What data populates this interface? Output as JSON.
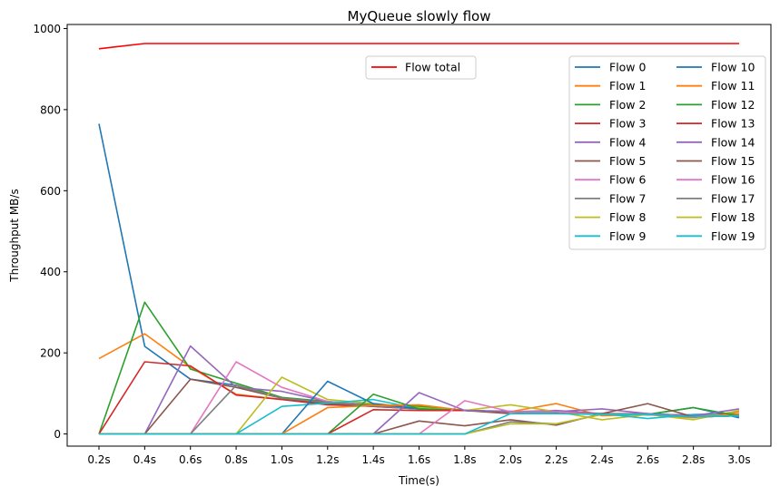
{
  "chart_data": {
    "type": "line",
    "title": "MyQueue slowly flow",
    "xlabel": "Time(s)",
    "ylabel": "Throughput MB/s",
    "categories": [
      "0.2s",
      "0.4s",
      "0.6s",
      "0.8s",
      "1.0s",
      "1.2s",
      "1.4s",
      "1.6s",
      "1.8s",
      "2.0s",
      "2.2s",
      "2.4s",
      "2.6s",
      "2.8s",
      "3.0s"
    ],
    "ylim": [
      -30,
      1010
    ],
    "yticks": [
      0,
      200,
      400,
      600,
      800,
      1000
    ],
    "grid": false,
    "legend_main_placement": "top-right",
    "legend_total_placement": "top-center",
    "total_series": {
      "name": "Flow total",
      "color": "#ff0000",
      "values": [
        950,
        963,
        963,
        963,
        963,
        963,
        963,
        963,
        963,
        963,
        963,
        963,
        963,
        963,
        963
      ]
    },
    "series": [
      {
        "name": "Flow 0",
        "color": "#1f77b4",
        "values": [
          765,
          216,
          135,
          120,
          88,
          78,
          72,
          65,
          58,
          56,
          52,
          50,
          47,
          47,
          44
        ]
      },
      {
        "name": "Flow 1",
        "color": "#ff7f0e",
        "values": [
          186,
          247,
          165,
          98,
          85,
          75,
          70,
          68,
          58,
          55,
          75,
          45,
          48,
          40,
          55
        ]
      },
      {
        "name": "Flow 2",
        "color": "#2ca02c",
        "values": [
          0,
          325,
          160,
          125,
          90,
          80,
          72,
          68,
          58,
          55,
          55,
          48,
          50,
          45,
          48
        ]
      },
      {
        "name": "Flow 3",
        "color": "#d62728",
        "values": [
          0,
          178,
          168,
          96,
          85,
          72,
          68,
          62,
          58,
          55,
          55,
          48,
          48,
          42,
          45
        ]
      },
      {
        "name": "Flow 4",
        "color": "#9467bd",
        "values": [
          0,
          0,
          217,
          115,
          105,
          80,
          70,
          62,
          58,
          55,
          58,
          50,
          50,
          45,
          48
        ]
      },
      {
        "name": "Flow 5",
        "color": "#8c564b",
        "values": [
          0,
          0,
          135,
          115,
          88,
          75,
          68,
          62,
          58,
          50,
          55,
          50,
          48,
          42,
          45
        ]
      },
      {
        "name": "Flow 6",
        "color": "#e377c2",
        "values": [
          0,
          0,
          0,
          178,
          115,
          80,
          70,
          62,
          58,
          55,
          55,
          48,
          48,
          42,
          45
        ]
      },
      {
        "name": "Flow 7",
        "color": "#7f7f7f",
        "values": [
          0,
          0,
          0,
          120,
          88,
          78,
          70,
          62,
          58,
          55,
          55,
          48,
          48,
          42,
          45
        ]
      },
      {
        "name": "Flow 8",
        "color": "#bcbd22",
        "values": [
          0,
          0,
          0,
          0,
          140,
          85,
          75,
          65,
          58,
          72,
          55,
          35,
          48,
          35,
          58
        ]
      },
      {
        "name": "Flow 9",
        "color": "#17becf",
        "values": [
          0,
          0,
          0,
          0,
          68,
          76,
          85,
          62,
          58,
          55,
          50,
          50,
          38,
          48,
          50
        ]
      },
      {
        "name": "Flow 10",
        "color": "#1f77b4",
        "values": [
          0,
          0,
          0,
          0,
          0,
          130,
          75,
          62,
          58,
          55,
          55,
          48,
          48,
          65,
          40
        ]
      },
      {
        "name": "Flow 11",
        "color": "#ff7f0e",
        "values": [
          0,
          0,
          0,
          0,
          0,
          65,
          70,
          72,
          58,
          55,
          55,
          48,
          48,
          42,
          50
        ]
      },
      {
        "name": "Flow 12",
        "color": "#2ca02c",
        "values": [
          0,
          0,
          0,
          0,
          0,
          0,
          98,
          62,
          58,
          55,
          55,
          48,
          48,
          65,
          45
        ]
      },
      {
        "name": "Flow 13",
        "color": "#d62728",
        "values": [
          0,
          0,
          0,
          0,
          0,
          0,
          60,
          58,
          58,
          55,
          55,
          48,
          48,
          42,
          45
        ]
      },
      {
        "name": "Flow 14",
        "color": "#9467bd",
        "values": [
          0,
          0,
          0,
          0,
          0,
          0,
          0,
          102,
          58,
          55,
          55,
          62,
          50,
          45,
          62
        ]
      },
      {
        "name": "Flow 15",
        "color": "#8c564b",
        "values": [
          0,
          0,
          0,
          0,
          0,
          0,
          0,
          32,
          20,
          35,
          22,
          50,
          75,
          42,
          45
        ]
      },
      {
        "name": "Flow 16",
        "color": "#e377c2",
        "values": [
          0,
          0,
          0,
          0,
          0,
          0,
          0,
          0,
          82,
          55,
          55,
          48,
          48,
          42,
          45
        ]
      },
      {
        "name": "Flow 17",
        "color": "#7f7f7f",
        "values": [
          0,
          0,
          0,
          0,
          0,
          0,
          0,
          0,
          0,
          30,
          25,
          48,
          48,
          42,
          45
        ]
      },
      {
        "name": "Flow 18",
        "color": "#bcbd22",
        "values": [
          0,
          0,
          0,
          0,
          0,
          0,
          0,
          0,
          0,
          25,
          25,
          48,
          48,
          42,
          45
        ]
      },
      {
        "name": "Flow 19",
        "color": "#17becf",
        "values": [
          0,
          0,
          0,
          0,
          0,
          0,
          0,
          0,
          0,
          50,
          50,
          48,
          48,
          42,
          45
        ]
      }
    ]
  }
}
